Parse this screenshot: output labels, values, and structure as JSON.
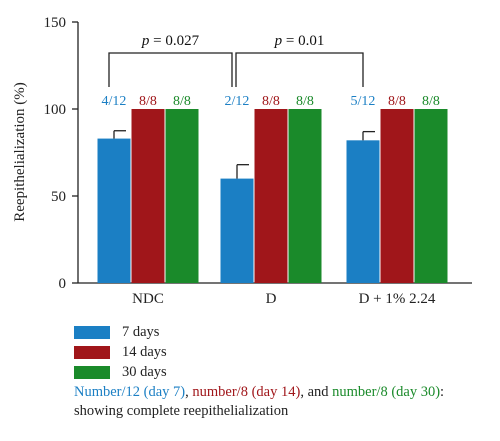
{
  "chart_data": {
    "type": "bar",
    "title": "",
    "xlabel": "",
    "ylabel": "Reepithelialization (%)",
    "ylim": [
      0,
      150
    ],
    "yticks": [
      "0",
      "50",
      "100",
      "150"
    ],
    "categories": [
      "NDC",
      "D",
      "D + 1% 2.24"
    ],
    "series": [
      {
        "name": "7 days",
        "color": "#1b7fc4",
        "values": [
          83,
          60,
          82
        ],
        "errors": [
          4.5,
          8,
          5
        ],
        "labels": [
          "4/12",
          "2/12",
          "5/12"
        ]
      },
      {
        "name": "14 days",
        "color": "#a0161a",
        "values": [
          100,
          100,
          100
        ],
        "errors": [
          0,
          0,
          0
        ],
        "labels": [
          "8/8",
          "8/8",
          "8/8"
        ]
      },
      {
        "name": "30 days",
        "color": "#1a8a2a",
        "values": [
          100,
          100,
          100
        ],
        "errors": [
          0,
          0,
          0
        ],
        "labels": [
          "8/8",
          "8/8",
          "8/8"
        ]
      }
    ],
    "comparisons": [
      {
        "from": 0,
        "to": 1,
        "label_p": "p",
        "label_val": " = 0.027"
      },
      {
        "from": 1,
        "to": 2,
        "label_p": "p",
        "label_val": " = 0.01"
      }
    ]
  },
  "note": {
    "part1": "Number/12 (day 7)",
    "sep1": ", ",
    "part2": "number/8 (day 14)",
    "sep2": ", and ",
    "part3": "number/8 (day 30)",
    "tail": ": showing complete reepithelialization"
  }
}
